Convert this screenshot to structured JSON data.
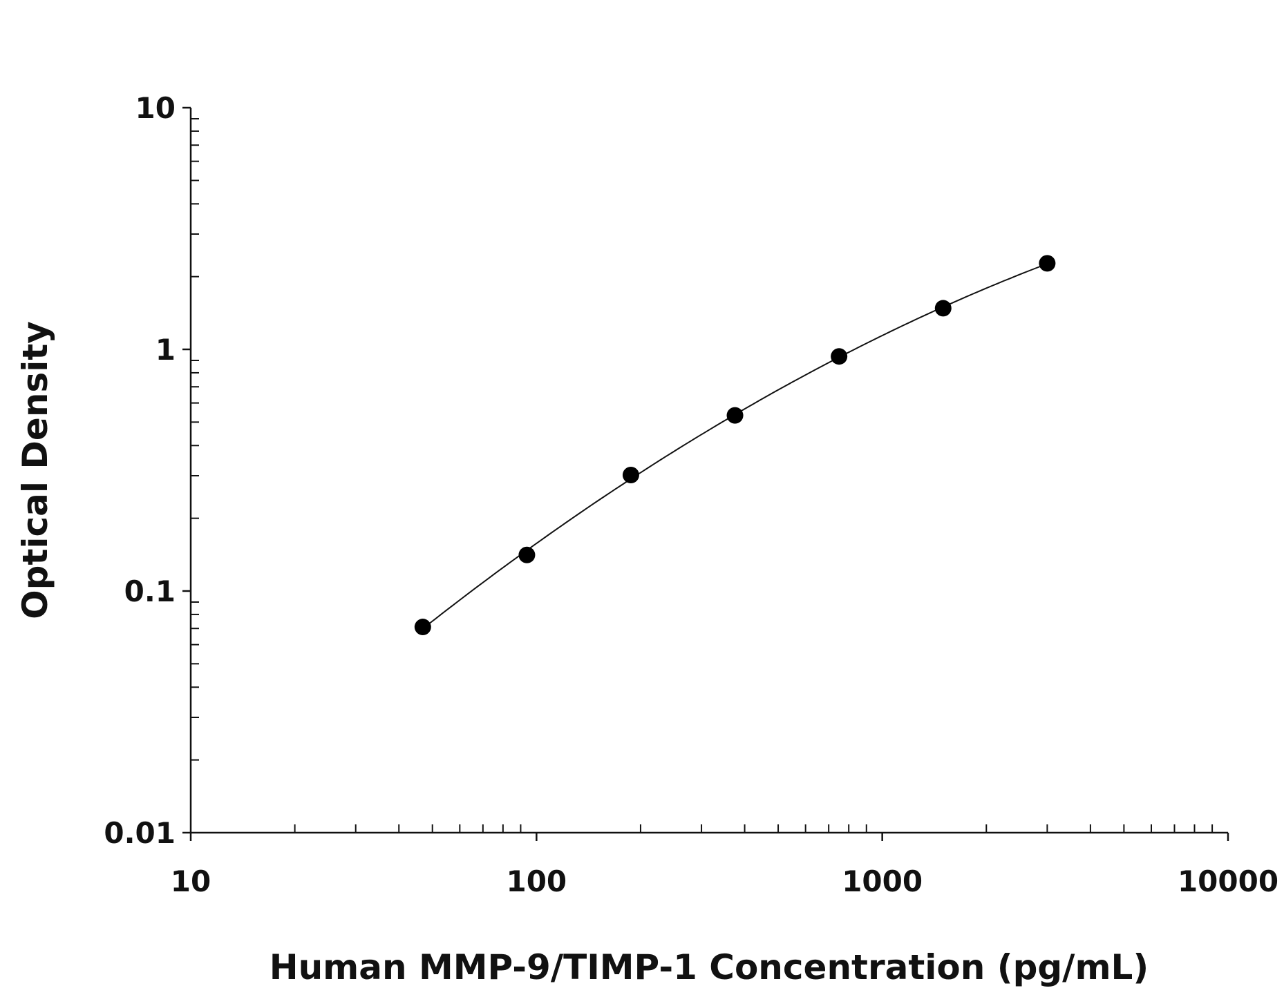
{
  "chart_data": {
    "type": "scatter",
    "title": "",
    "xlabel": "Human MMP-9/TIMP-1 Concentration (pg/mL)",
    "ylabel": "Optical Density",
    "xscale": "log",
    "yscale": "log",
    "xlim": [
      10,
      10000
    ],
    "ylim": [
      0.01,
      10
    ],
    "xticks": [
      "10",
      "100",
      "1000",
      "10000"
    ],
    "yticks": [
      "0.01",
      "0.1",
      "1",
      "10"
    ],
    "grid": false,
    "fit_curve": true,
    "point_color": "#000000",
    "series": [
      {
        "x": [
          46.9,
          93.8,
          187.5,
          375,
          750,
          1500,
          3000
        ],
        "y": [
          0.071,
          0.141,
          0.302,
          0.533,
          0.935,
          1.48,
          2.27
        ]
      }
    ]
  }
}
